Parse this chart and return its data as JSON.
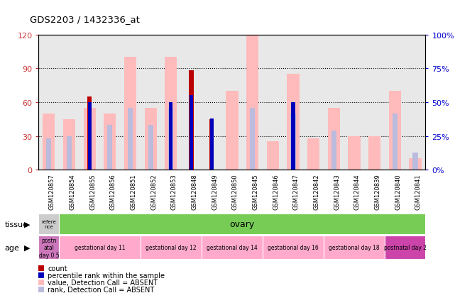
{
  "title": "GDS2203 / 1432336_at",
  "samples": [
    "GSM120857",
    "GSM120854",
    "GSM120855",
    "GSM120856",
    "GSM120851",
    "GSM120852",
    "GSM120853",
    "GSM120848",
    "GSM120849",
    "GSM120850",
    "GSM120845",
    "GSM120846",
    "GSM120847",
    "GSM120842",
    "GSM120843",
    "GSM120844",
    "GSM120839",
    "GSM120840",
    "GSM120841"
  ],
  "count": [
    0,
    0,
    65,
    0,
    0,
    0,
    0,
    88,
    45,
    0,
    0,
    0,
    0,
    0,
    0,
    0,
    0,
    0,
    0
  ],
  "percentile_rank": [
    0,
    0,
    50,
    0,
    0,
    0,
    50,
    55,
    38,
    0,
    0,
    0,
    50,
    0,
    0,
    0,
    0,
    0,
    0
  ],
  "value_absent": [
    50,
    45,
    55,
    50,
    100,
    55,
    100,
    0,
    0,
    70,
    120,
    25,
    85,
    28,
    55,
    30,
    30,
    70,
    10
  ],
  "rank_absent": [
    28,
    30,
    0,
    40,
    55,
    40,
    55,
    55,
    0,
    0,
    55,
    0,
    50,
    0,
    35,
    0,
    0,
    50,
    15
  ],
  "ylim": [
    0,
    120
  ],
  "y2lim": [
    0,
    100
  ],
  "yticks": [
    0,
    30,
    60,
    90,
    120
  ],
  "ytick_labels": [
    "0",
    "30",
    "60",
    "90",
    "120"
  ],
  "y2ticks": [
    0,
    25,
    50,
    75,
    100
  ],
  "y2tick_labels": [
    "0%",
    "25%",
    "50%",
    "75%",
    "100%"
  ],
  "color_count": "#bb0000",
  "color_rank": "#0000bb",
  "color_value_absent": "#ffbbbb",
  "color_rank_absent": "#bbbbdd",
  "tissue_label": "tissue",
  "tissue_ref_text": "refere\nnce",
  "tissue_ovary_text": "ovary",
  "tissue_ref_color": "#cccccc",
  "tissue_ovary_color": "#77cc55",
  "age_label": "age",
  "age_groups": [
    {
      "label": "postn\natal\nday 0.5",
      "color": "#cc77bb",
      "start": 0,
      "end": 1
    },
    {
      "label": "gestational day 11",
      "color": "#ffaacc",
      "start": 1,
      "end": 5
    },
    {
      "label": "gestational day 12",
      "color": "#ffaacc",
      "start": 5,
      "end": 8
    },
    {
      "label": "gestational day 14",
      "color": "#ffaacc",
      "start": 8,
      "end": 11
    },
    {
      "label": "gestational day 16",
      "color": "#ffaacc",
      "start": 11,
      "end": 14
    },
    {
      "label": "gestational day 18",
      "color": "#ffaacc",
      "start": 14,
      "end": 17
    },
    {
      "label": "postnatal day 2",
      "color": "#cc44aa",
      "start": 17,
      "end": 19
    }
  ],
  "background_color": "#ffffff",
  "plot_bg_color": "#e8e8e8",
  "tick_color_left": "#cc3333",
  "tick_color_right": "#0000cc"
}
